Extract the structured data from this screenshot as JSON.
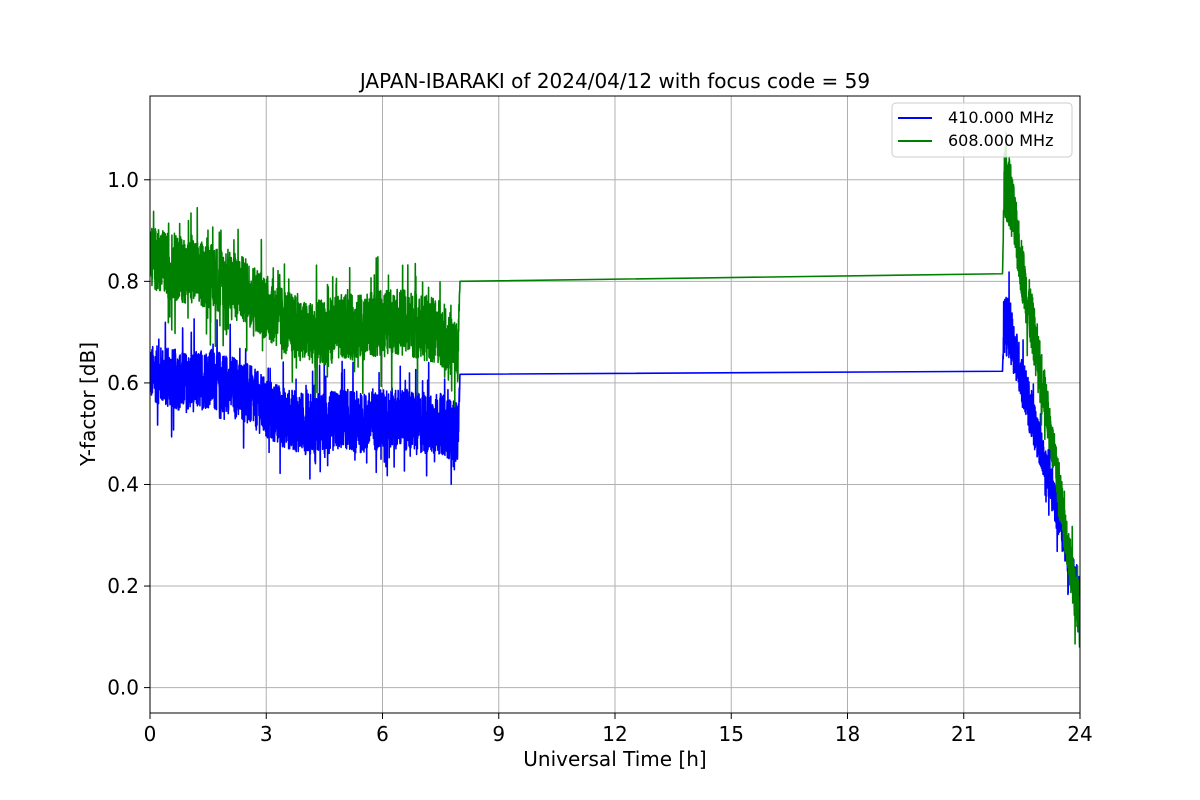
{
  "chart_data": {
    "type": "line",
    "title": "JAPAN-IBARAKI of 2024/04/12 with focus code = 59",
    "xlabel": "Universal Time [h]",
    "ylabel": "Y-factor [dB]",
    "xlim": [
      0,
      24
    ],
    "ylim": [
      -0.05,
      1.165
    ],
    "xticks": [
      0,
      3,
      6,
      9,
      12,
      15,
      18,
      21,
      24
    ],
    "xtick_labels": [
      "0",
      "3",
      "6",
      "9",
      "12",
      "15",
      "18",
      "21",
      "24"
    ],
    "yticks": [
      0.0,
      0.2,
      0.4,
      0.6,
      0.8,
      1.0
    ],
    "ytick_labels": [
      "0.0",
      "0.2",
      "0.4",
      "0.6",
      "0.8",
      "1.0"
    ],
    "grid": true,
    "legend": "top-right",
    "series": [
      {
        "name": "410.000 MHz",
        "color": "#0000ff",
        "x": [
          0,
          0.5,
          1,
          1.5,
          2,
          2.5,
          3,
          3.5,
          4,
          4.5,
          5,
          5.5,
          6,
          6.5,
          7,
          7.5,
          7.95,
          8.0,
          22.0,
          22.05,
          22.2,
          22.4,
          22.6,
          22.8,
          23.0,
          23.2,
          23.4,
          23.6,
          23.8,
          24.0
        ],
        "y": [
          0.62,
          0.61,
          0.6,
          0.61,
          0.6,
          0.58,
          0.55,
          0.53,
          0.52,
          0.52,
          0.53,
          0.52,
          0.53,
          0.53,
          0.52,
          0.52,
          0.5,
          0.617,
          0.623,
          0.72,
          0.7,
          0.64,
          0.58,
          0.52,
          0.47,
          0.41,
          0.35,
          0.29,
          0.23,
          0.18
        ],
        "noise": [
          0.055,
          0.06,
          0.06,
          0.06,
          0.06,
          0.06,
          0.06,
          0.06,
          0.06,
          0.06,
          0.06,
          0.06,
          0.06,
          0.06,
          0.06,
          0.06,
          0.06,
          0,
          0,
          0.06,
          0.06,
          0.05,
          0.05,
          0.05,
          0.04,
          0.04,
          0.04,
          0.04,
          0.04,
          0.04
        ]
      },
      {
        "name": "608.000 MHz",
        "color": "#008000",
        "x": [
          0,
          0.5,
          1,
          1.5,
          2,
          2.5,
          3,
          3.5,
          4,
          4.5,
          5,
          5.5,
          6,
          6.5,
          7,
          7.5,
          7.95,
          8.0,
          22.0,
          22.05,
          22.2,
          22.4,
          22.6,
          22.8,
          23.0,
          23.2,
          23.4,
          23.6,
          23.8,
          24.0
        ],
        "y": [
          0.85,
          0.83,
          0.82,
          0.81,
          0.8,
          0.78,
          0.75,
          0.72,
          0.7,
          0.7,
          0.71,
          0.71,
          0.72,
          0.72,
          0.71,
          0.7,
          0.66,
          0.8,
          0.815,
          1.0,
          0.97,
          0.87,
          0.78,
          0.7,
          0.62,
          0.52,
          0.42,
          0.32,
          0.22,
          0.12
        ],
        "noise": [
          0.06,
          0.065,
          0.065,
          0.065,
          0.065,
          0.065,
          0.065,
          0.065,
          0.06,
          0.065,
          0.065,
          0.065,
          0.065,
          0.065,
          0.065,
          0.065,
          0.06,
          0,
          0,
          0.07,
          0.07,
          0.06,
          0.06,
          0.06,
          0.05,
          0.05,
          0.05,
          0.05,
          0.05,
          0.05
        ]
      }
    ]
  }
}
